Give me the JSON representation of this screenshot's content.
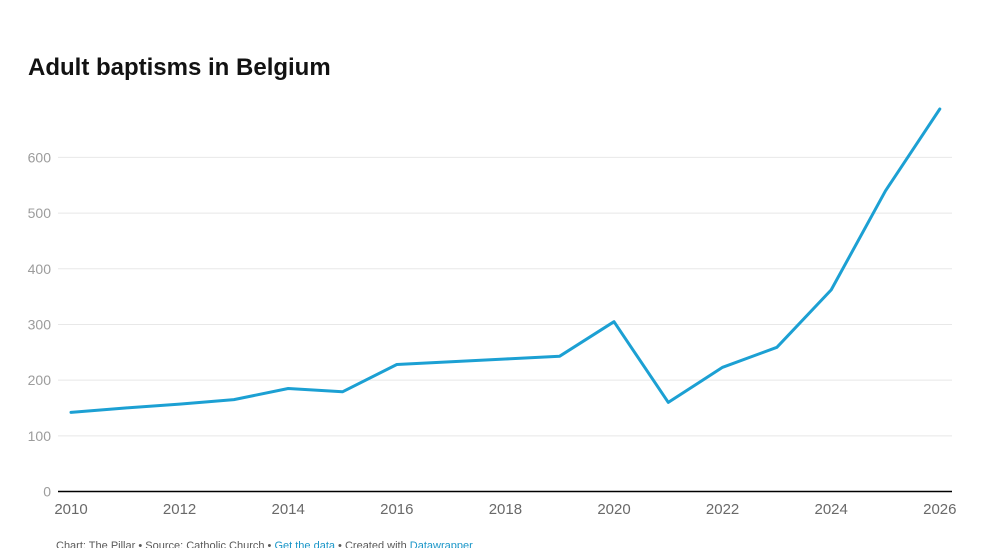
{
  "title": "Adult baptisms in Belgium",
  "chart_data": {
    "type": "line",
    "title": "Adult baptisms in Belgium",
    "x": [
      2010,
      2011,
      2012,
      2013,
      2014,
      2015,
      2016,
      2017,
      2018,
      2019,
      2020,
      2021,
      2022,
      2023,
      2024,
      2025,
      2026
    ],
    "values": [
      142,
      150,
      157,
      165,
      185,
      179,
      228,
      233,
      238,
      243,
      305,
      160,
      223,
      259,
      362,
      540,
      687
    ],
    "series_name": "Adult baptisms",
    "x_tick_labels": [
      "2010",
      "2012",
      "2014",
      "2016",
      "2018",
      "2020",
      "2022",
      "2024",
      "2026"
    ],
    "y_tick_labels": [
      "0",
      "100",
      "200",
      "300",
      "400",
      "500",
      "600"
    ],
    "y_ticks": [
      0,
      100,
      200,
      300,
      400,
      500,
      600
    ],
    "ylim": [
      0,
      700
    ],
    "xlabel": "",
    "ylabel": "",
    "grid": "horizontal-only",
    "legend": "none",
    "line_color": "#1CA0D3",
    "gridline_color": "#e8e8e8",
    "axis_color": "#000000"
  },
  "footer": {
    "chart_credit": "Chart: The Pillar",
    "sep1": " • ",
    "source_credit": "Source: Catholic Church",
    "sep2": " • ",
    "get_data_link": "Get the data",
    "sep3": " • ",
    "created_with": "Created with ",
    "datawrapper_link": "Datawrapper"
  },
  "colors": {
    "accent_line": "#1CA0D3",
    "link_blue": "#1a96c8",
    "title_text": "#121212",
    "y_tick_text": "#9c9c9c",
    "x_tick_text": "#696969",
    "gridline": "#e8e8e8",
    "axis_line": "#000000",
    "background": "#ffffff"
  }
}
